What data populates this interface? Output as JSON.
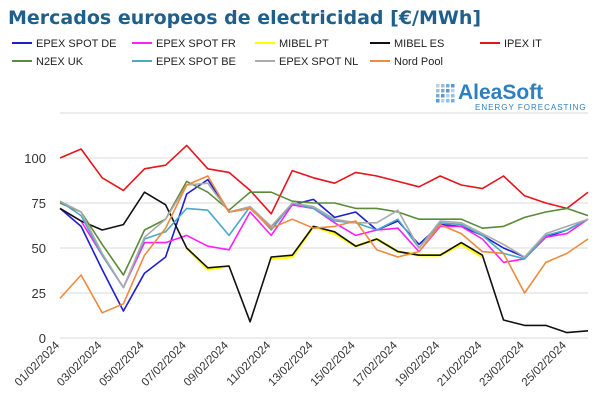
{
  "colors": {
    "title": "#1f5f8b",
    "grid": "#d9d9d9",
    "logo": "#2f7fc0"
  },
  "logo": {
    "name": "AleaSoft",
    "tagline": "ENERGY FORECASTING",
    "icon": "grid-dots-icon"
  },
  "chart_data": {
    "type": "line",
    "title": "Mercados europeos de electricidad [€/MWh]",
    "xlabel": "",
    "ylabel": "",
    "ylim": [
      0,
      125
    ],
    "yticks": [
      0,
      25,
      50,
      75,
      100
    ],
    "grid": true,
    "legend_position": "top",
    "x": [
      "01/02/2024",
      "02/02/2024",
      "03/02/2024",
      "04/02/2024",
      "05/02/2024",
      "06/02/2024",
      "07/02/2024",
      "08/02/2024",
      "09/02/2024",
      "10/02/2024",
      "11/02/2024",
      "12/02/2024",
      "13/02/2024",
      "14/02/2024",
      "15/02/2024",
      "16/02/2024",
      "17/02/2024",
      "18/02/2024",
      "19/02/2024",
      "20/02/2024",
      "21/02/2024",
      "22/02/2024",
      "23/02/2024",
      "24/02/2024",
      "25/02/2024",
      "26/02/2024"
    ],
    "xtick_labels": [
      "01/02/2024",
      "03/02/2024",
      "05/02/2024",
      "07/02/2024",
      "09/02/2024",
      "11/02/2024",
      "13/02/2024",
      "15/02/2024",
      "17/02/2024",
      "19/02/2024",
      "21/02/2024",
      "23/02/2024",
      "25/02/2024"
    ],
    "series": [
      {
        "name": "EPEX SPOT DE",
        "color": "#1f1fd1",
        "values": [
          72,
          62,
          38,
          15,
          36,
          45,
          80,
          88,
          70,
          72,
          62,
          74,
          77,
          67,
          70,
          60,
          65,
          52,
          63,
          62,
          57,
          50,
          45,
          56,
          60,
          66
        ]
      },
      {
        "name": "EPEX SPOT FR",
        "color": "#ff1fff",
        "values": [
          72,
          65,
          46,
          28,
          53,
          53,
          57,
          51,
          49,
          70,
          57,
          74,
          72,
          64,
          57,
          60,
          61,
          48,
          62,
          62,
          55,
          42,
          44,
          56,
          58,
          66
        ]
      },
      {
        "name": "MIBEL PT",
        "color": "#ffff00",
        "values": [
          null,
          null,
          null,
          null,
          null,
          null,
          50,
          38,
          40,
          null,
          44,
          45,
          62,
          58,
          51,
          55,
          48,
          46,
          46,
          52,
          45,
          null,
          null,
          null,
          null,
          null
        ]
      },
      {
        "name": "MIBEL ES",
        "color": "#111111",
        "values": [
          72,
          65,
          60,
          63,
          81,
          74,
          50,
          39,
          40,
          9,
          45,
          46,
          62,
          59,
          51,
          55,
          48,
          46,
          46,
          53,
          46,
          10,
          7,
          7,
          3,
          4
        ]
      },
      {
        "name": "IPEX IT",
        "color": "#e8141c",
        "values": [
          100,
          105,
          89,
          82,
          94,
          96,
          107,
          94,
          92,
          82,
          69,
          93,
          89,
          86,
          92,
          90,
          87,
          84,
          90,
          85,
          83,
          90,
          79,
          75,
          72,
          81
        ]
      },
      {
        "name": "N2EX UK",
        "color": "#5a8a3a",
        "values": [
          75,
          70,
          52,
          35,
          60,
          66,
          87,
          81,
          71,
          81,
          81,
          76,
          75,
          75,
          72,
          72,
          70,
          66,
          66,
          66,
          61,
          62,
          67,
          70,
          72,
          68
        ]
      },
      {
        "name": "EPEX SPOT BE",
        "color": "#4aaac8",
        "values": [
          76,
          68,
          46,
          28,
          55,
          59,
          72,
          71,
          57,
          73,
          60,
          75,
          72,
          65,
          64,
          60,
          66,
          50,
          64,
          63,
          57,
          47,
          44,
          57,
          60,
          66
        ]
      },
      {
        "name": "EPEX SPOT NL",
        "color": "#aaaaaa",
        "values": [
          76,
          70,
          47,
          28,
          56,
          66,
          85,
          86,
          70,
          73,
          62,
          75,
          73,
          66,
          64,
          64,
          71,
          50,
          65,
          64,
          58,
          52,
          45,
          58,
          62,
          66
        ]
      },
      {
        "name": "Nord Pool",
        "color": "#f08a3c",
        "values": [
          22,
          35,
          14,
          19,
          46,
          61,
          85,
          90,
          70,
          72,
          61,
          66,
          61,
          62,
          65,
          49,
          45,
          48,
          63,
          58,
          48,
          47,
          25,
          42,
          47,
          55
        ]
      }
    ]
  }
}
